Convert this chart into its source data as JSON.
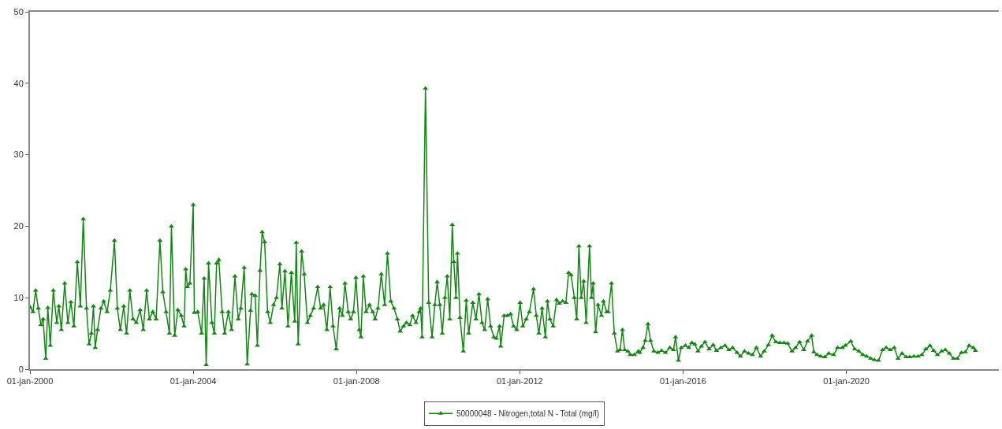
{
  "chart_data": {
    "type": "line",
    "xlim": [
      "2000-01-01",
      "2023-09-27"
    ],
    "ylim": [
      0,
      50
    ],
    "xticks": [
      {
        "value": "2000-01-01",
        "label": "01-jan-2000"
      },
      {
        "value": "2004-01-01",
        "label": "01-jan-2004"
      },
      {
        "value": "2008-01-01",
        "label": "01-jan-2008"
      },
      {
        "value": "2012-01-01",
        "label": "01-jan-2012"
      },
      {
        "value": "2016-01-01",
        "label": "01-jan-2016"
      },
      {
        "value": "2020-01-01",
        "label": "01-jan-2020"
      }
    ],
    "yticks": [
      0,
      10,
      20,
      30,
      40,
      50
    ],
    "grid": false,
    "legend": "bottom",
    "marker": "triangle",
    "line_style": "solid",
    "series": [
      {
        "name": "50000048 - Nitrogen,total N - Total (mg/l)",
        "color": "#118811",
        "x": [
          "2000-01-01",
          "2000-01-28",
          "2000-02-21",
          "2000-03-16",
          "2000-04-08",
          "2000-04-28",
          "2000-05-21",
          "2000-06-09",
          "2000-07-01",
          "2000-07-28",
          "2000-08-28",
          "2000-09-16",
          "2000-10-08",
          "2000-11-07",
          "2000-12-05",
          "2001-01-01",
          "2001-01-28",
          "2001-02-28",
          "2001-03-27",
          "2001-04-22",
          "2001-05-21",
          "2001-06-13",
          "2001-07-04",
          "2001-07-22",
          "2001-08-07",
          "2001-08-28",
          "2001-09-27",
          "2001-10-22",
          "2001-11-21",
          "2001-12-20",
          "2002-01-26",
          "2002-02-21",
          "2002-03-20",
          "2002-04-19",
          "2002-05-14",
          "2002-06-13",
          "2002-07-11",
          "2002-08-10",
          "2002-09-13",
          "2002-10-11",
          "2002-11-10",
          "2002-12-05",
          "2003-01-04",
          "2003-02-03",
          "2003-03-09",
          "2003-04-04",
          "2003-05-03",
          "2003-06-02",
          "2003-06-20",
          "2003-07-19",
          "2003-08-17",
          "2003-09-16",
          "2003-10-11",
          "2003-10-26",
          "2003-11-10",
          "2003-12-02",
          "2004-01-01",
          "2004-01-11",
          "2004-02-10",
          "2004-03-16",
          "2004-04-08",
          "2004-04-26",
          "2004-05-17",
          "2004-06-16",
          "2004-07-08",
          "2004-07-28",
          "2004-08-17",
          "2004-09-16",
          "2004-10-08",
          "2004-11-10",
          "2004-12-09",
          "2005-01-08",
          "2005-02-07",
          "2005-03-02",
          "2005-04-01",
          "2005-04-28",
          "2005-05-28",
          "2005-06-09",
          "2005-07-08",
          "2005-07-28",
          "2005-08-21",
          "2005-09-09",
          "2005-10-01",
          "2005-10-28",
          "2005-11-21",
          "2005-12-20",
          "2006-01-15",
          "2006-02-14",
          "2006-03-05",
          "2006-04-01",
          "2006-04-28",
          "2006-05-28",
          "2006-06-27",
          "2006-07-11",
          "2006-07-28",
          "2006-08-28",
          "2006-09-20",
          "2006-10-19",
          "2006-11-14",
          "2006-12-13",
          "2007-01-19",
          "2007-02-14",
          "2007-03-13",
          "2007-04-11",
          "2007-05-10",
          "2007-06-05",
          "2007-07-04",
          "2007-08-03",
          "2007-08-28",
          "2007-09-20",
          "2007-10-19",
          "2007-11-10",
          "2007-12-05",
          "2007-12-27",
          "2008-01-26",
          "2008-02-10",
          "2008-03-02",
          "2008-03-27",
          "2008-04-26",
          "2008-05-25",
          "2008-06-16",
          "2008-07-11",
          "2008-08-10",
          "2008-09-09",
          "2008-10-04",
          "2008-11-03",
          "2008-12-02",
          "2009-01-01",
          "2009-01-26",
          "2009-02-25",
          "2009-03-23",
          "2009-04-22",
          "2009-05-17",
          "2009-06-16",
          "2009-07-15",
          "2009-07-28",
          "2009-08-10",
          "2009-09-09",
          "2009-10-08",
          "2009-11-07",
          "2009-12-02",
          "2009-12-23",
          "2010-01-15",
          "2010-02-07",
          "2010-03-02",
          "2010-03-23",
          "2010-04-15",
          "2010-05-07",
          "2010-05-21",
          "2010-06-09",
          "2010-06-23",
          "2010-07-15",
          "2010-08-14",
          "2010-09-09",
          "2010-10-01",
          "2010-11-07",
          "2010-12-05",
          "2011-01-01",
          "2011-01-28",
          "2011-02-21",
          "2011-03-20",
          "2011-04-15",
          "2011-05-14",
          "2011-06-05",
          "2011-07-04",
          "2011-07-15",
          "2011-08-14",
          "2011-09-13",
          "2011-10-11",
          "2011-11-07",
          "2011-12-05",
          "2012-01-04",
          "2012-01-28",
          "2012-02-28",
          "2012-03-27",
          "2012-05-03",
          "2012-05-28",
          "2012-06-20",
          "2012-07-19",
          "2012-08-17",
          "2012-09-05",
          "2012-09-27",
          "2012-10-26",
          "2012-11-25",
          "2012-12-20",
          "2013-01-19",
          "2013-02-17",
          "2013-03-13",
          "2013-04-04",
          "2013-05-03",
          "2013-05-25",
          "2013-06-13",
          "2013-07-04",
          "2013-07-26",
          "2013-08-17",
          "2013-09-16",
          "2013-10-04",
          "2013-10-19",
          "2013-11-10",
          "2013-12-02",
          "2014-01-01",
          "2014-01-19",
          "2014-02-17",
          "2014-03-02",
          "2014-04-01",
          "2014-04-26",
          "2014-05-25",
          "2014-06-16",
          "2014-07-08",
          "2014-07-28",
          "2014-08-25",
          "2014-09-16",
          "2014-10-22",
          "2014-11-27",
          "2014-12-09",
          "2015-01-08",
          "2015-01-28",
          "2015-02-21",
          "2015-03-16",
          "2015-04-15",
          "2015-05-21",
          "2015-06-23",
          "2015-07-28",
          "2015-09-05",
          "2015-10-08",
          "2015-10-26",
          "2015-11-21",
          "2015-12-16",
          "2016-01-22",
          "2016-02-21",
          "2016-03-20",
          "2016-04-15",
          "2016-05-14",
          "2016-06-13",
          "2016-07-15",
          "2016-08-21",
          "2016-09-27",
          "2016-10-26",
          "2016-12-05",
          "2017-01-11",
          "2017-02-14",
          "2017-03-20",
          "2017-04-28",
          "2017-05-28",
          "2017-07-04",
          "2017-08-10",
          "2017-09-13",
          "2017-10-19",
          "2017-11-25",
          "2017-12-27",
          "2018-02-03",
          "2018-03-09",
          "2018-04-11",
          "2018-05-17",
          "2018-06-23",
          "2018-07-26",
          "2018-09-02",
          "2018-10-04",
          "2018-11-10",
          "2018-12-16",
          "2019-01-19",
          "2019-02-25",
          "2019-03-16",
          "2019-04-15",
          "2019-05-17",
          "2019-06-23",
          "2019-07-28",
          "2019-09-09",
          "2019-10-15",
          "2019-11-27",
          "2019-12-23",
          "2020-02-10",
          "2020-03-16",
          "2020-04-22",
          "2020-05-28",
          "2020-07-01",
          "2020-08-07",
          "2020-09-09",
          "2020-10-15",
          "2020-11-21",
          "2020-12-23",
          "2021-01-28",
          "2021-03-05",
          "2021-04-08",
          "2021-05-14",
          "2021-06-20",
          "2021-07-22",
          "2021-08-28",
          "2021-10-04",
          "2021-11-07",
          "2021-12-13",
          "2022-01-19",
          "2022-02-21",
          "2022-03-27",
          "2022-05-03",
          "2022-06-05",
          "2022-07-11",
          "2022-08-17",
          "2022-09-20",
          "2022-10-26",
          "2022-12-02",
          "2023-01-04",
          "2023-02-10",
          "2023-03-02"
        ],
        "values": [
          8.7,
          8.0,
          11.0,
          8.5,
          6.2,
          7.0,
          1.5,
          8.6,
          3.3,
          11.0,
          6.5,
          8.8,
          5.5,
          12.0,
          6.5,
          9.4,
          6.0,
          15.0,
          8.8,
          21.0,
          8.5,
          3.5,
          5.0,
          8.8,
          3.0,
          5.5,
          8.5,
          9.5,
          8.0,
          11.0,
          18.0,
          8.5,
          5.5,
          8.8,
          5.0,
          11.0,
          7.0,
          6.5,
          8.3,
          5.5,
          11.0,
          7.0,
          8.0,
          7.0,
          18.0,
          10.8,
          8.0,
          5.0,
          20.0,
          4.7,
          8.3,
          7.5,
          6.0,
          14.0,
          11.5,
          12.0,
          23.0,
          7.9,
          8.0,
          5.0,
          12.7,
          0.6,
          14.8,
          6.5,
          5.0,
          14.8,
          15.3,
          8.0,
          5.0,
          8.0,
          5.5,
          13.0,
          7.0,
          8.5,
          14.2,
          0.7,
          8.2,
          10.5,
          10.3,
          3.3,
          13.8,
          19.2,
          17.8,
          8.0,
          6.5,
          9.0,
          10.0,
          14.7,
          8.5,
          13.7,
          6.0,
          13.5,
          6.7,
          17.7,
          3.5,
          16.5,
          13.3,
          6.5,
          7.5,
          8.5,
          11.5,
          8.5,
          9.0,
          5.5,
          11.5,
          6.0,
          2.8,
          8.5,
          7.5,
          12.0,
          8.0,
          7.0,
          8.0,
          12.8,
          5.5,
          4.5,
          13.0,
          8.0,
          9.0,
          8.0,
          7.0,
          8.5,
          13.3,
          9.0,
          16.2,
          9.5,
          8.5,
          7.0,
          5.3,
          6.0,
          6.5,
          6.2,
          7.5,
          6.5,
          8.0,
          8.5,
          4.5,
          39.3,
          9.3,
          4.5,
          9.0,
          12.2,
          9.0,
          5.0,
          10.0,
          13.0,
          7.0,
          20.2,
          15.0,
          10.0,
          16.2,
          7.2,
          2.5,
          9.6,
          5.0,
          9.3,
          7.0,
          10.5,
          6.5,
          5.5,
          9.8,
          6.0,
          4.5,
          4.3,
          6.0,
          3.2,
          7.5,
          7.5,
          7.7,
          6.0,
          5.5,
          9.3,
          6.0,
          7.0,
          8.0,
          11.2,
          7.5,
          5.0,
          8.5,
          4.5,
          9.5,
          7.0,
          6.0,
          9.7,
          9.2,
          9.5,
          9.3,
          13.5,
          13.2,
          10.0,
          7.0,
          17.2,
          10.0,
          12.3,
          6.5,
          17.2,
          10.0,
          12.0,
          5.2,
          9.0,
          7.5,
          9.5,
          8.0,
          8.0,
          12.0,
          5.0,
          2.5,
          2.7,
          5.5,
          2.7,
          2.5,
          2.0,
          2.0,
          2.5,
          2.3,
          3.0,
          4.0,
          6.3,
          4.0,
          2.5,
          2.3,
          2.6,
          2.3,
          3.0,
          2.7,
          4.5,
          1.2,
          3.0,
          3.3,
          3.0,
          3.7,
          3.5,
          2.5,
          3.2,
          3.8,
          2.8,
          3.4,
          2.6,
          3.0,
          3.3,
          2.7,
          3.0,
          2.3,
          1.8,
          2.5,
          2.2,
          2.0,
          3.0,
          1.8,
          2.5,
          3.4,
          4.7,
          3.8,
          3.7,
          3.7,
          3.6,
          2.5,
          3.0,
          3.8,
          2.7,
          3.9,
          4.7,
          2.4,
          2.0,
          1.8,
          1.7,
          2.2,
          2.0,
          3.0,
          3.0,
          3.3,
          3.9,
          2.8,
          2.5,
          2.0,
          1.8,
          1.5,
          1.3,
          1.2,
          2.7,
          3.0,
          2.7,
          3.0,
          1.5,
          2.2,
          1.7,
          1.7,
          1.8,
          1.8,
          2.0,
          2.8,
          3.3,
          2.6,
          2.0,
          2.5,
          2.7,
          2.2,
          1.5,
          1.5,
          2.3,
          2.4,
          3.3,
          3.0,
          2.6
        ]
      }
    ]
  }
}
